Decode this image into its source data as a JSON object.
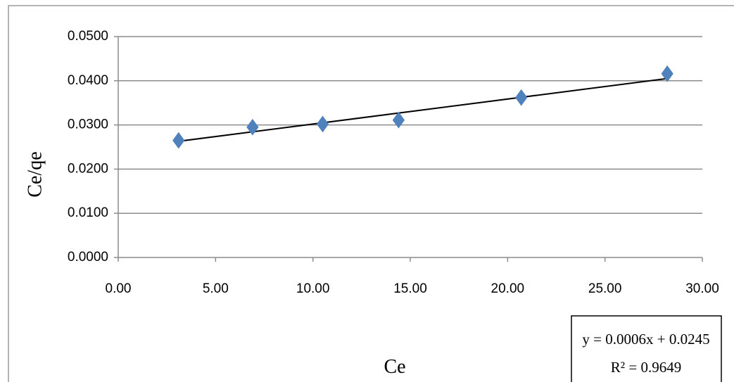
{
  "chart_data": {
    "type": "scatter",
    "title": "",
    "xlabel": "Ce",
    "ylabel": "Ce/qe",
    "xlim": [
      0,
      30
    ],
    "ylim": [
      0,
      0.05
    ],
    "x_ticks": [
      "0.00",
      "5.00",
      "10.00",
      "15.00",
      "20.00",
      "25.00",
      "30.00"
    ],
    "y_ticks": [
      "0.0000",
      "0.0100",
      "0.0200",
      "0.0300",
      "0.0400",
      "0.0500"
    ],
    "grid": "horizontal",
    "legend": "none",
    "marker": "diamond",
    "marker_color": "#4F81BD",
    "trendline_color": "#000000",
    "points": [
      {
        "x": 3.1,
        "y": 0.0265
      },
      {
        "x": 6.9,
        "y": 0.0295
      },
      {
        "x": 10.5,
        "y": 0.0302
      },
      {
        "x": 14.4,
        "y": 0.0311
      },
      {
        "x": 20.7,
        "y": 0.0362
      },
      {
        "x": 28.2,
        "y": 0.0416
      }
    ],
    "trendline": {
      "type": "linear",
      "x_range": [
        3.1,
        28.2
      ],
      "y_range": [
        0.0263,
        0.0405
      ]
    },
    "annotation": {
      "equation": "y = 0.0006x + 0.0245",
      "r_squared": "R² = 0.9649"
    }
  }
}
